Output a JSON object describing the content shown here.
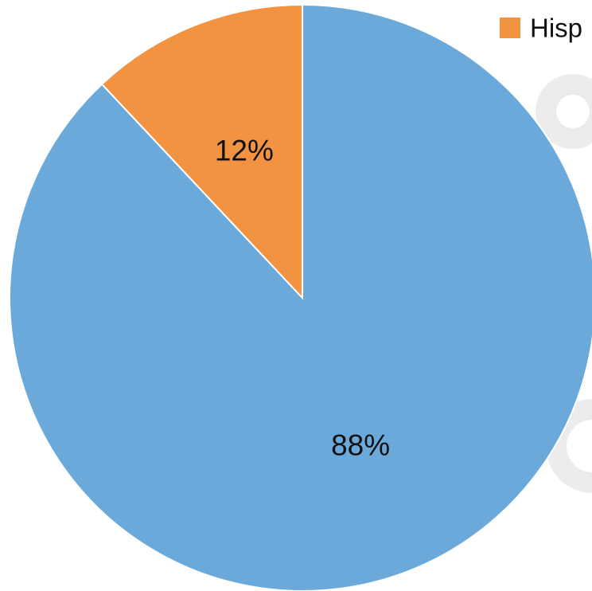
{
  "chart_data": {
    "type": "pie",
    "slices": [
      {
        "label": "88%",
        "value": 88,
        "color": "#6aa9da"
      },
      {
        "label": "12%",
        "value": 12,
        "color": "#f19340"
      }
    ],
    "start_angle_deg": 0,
    "direction": "clockwise",
    "legend": {
      "placement": "top-right",
      "entries": [
        {
          "text": "Hisp",
          "color": "#f19340"
        }
      ]
    }
  }
}
